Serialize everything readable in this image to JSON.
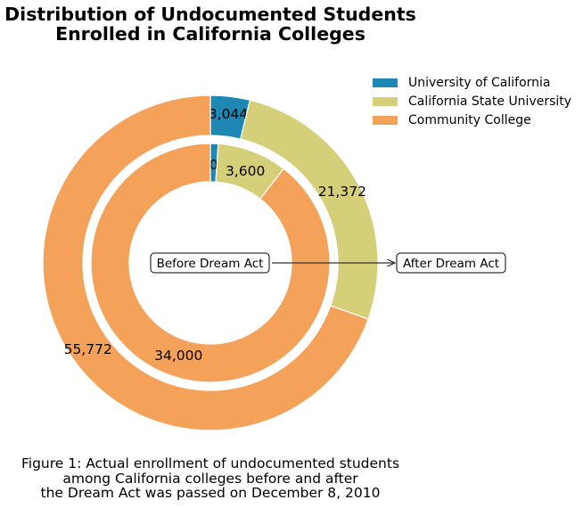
{
  "chart_data": {
    "type": "pie",
    "variant": "nested-donut",
    "title_lines": [
      "Distribution of Undocumented Students",
      "Enrolled in California Colleges"
    ],
    "caption_lines": [
      "Figure 1: Actual enrollment of undocumented students",
      "among California colleges before and after",
      "the Dream Act was passed on December 8, 2010"
    ],
    "legend_position": "top-right",
    "categories": [
      "University of California",
      "California State University",
      "Community College"
    ],
    "colors": [
      "#1f87b4",
      "#d6cf79",
      "#f4a15a"
    ],
    "series": [
      {
        "name": "Before Dream Act",
        "ring": "inner",
        "values": [
          400,
          3600,
          34000
        ],
        "labels": [
          "400",
          "3,600",
          "34,000"
        ]
      },
      {
        "name": "After Dream Act",
        "ring": "outer",
        "values": [
          3044,
          21372,
          55772
        ],
        "labels": [
          "3,044",
          "21,372",
          "55,772"
        ]
      }
    ],
    "annotation": {
      "from": "Before Dream Act",
      "to": "After Dream Act"
    }
  }
}
